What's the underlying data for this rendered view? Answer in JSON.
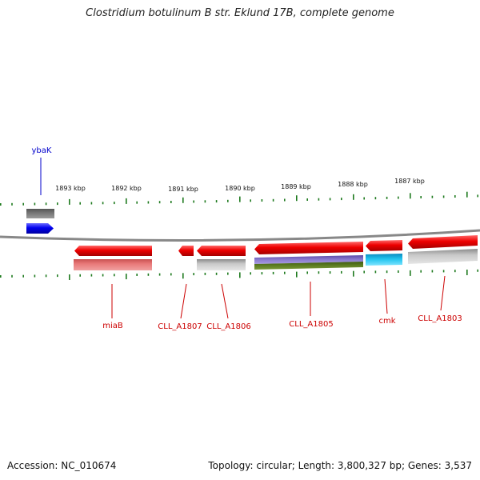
{
  "title": "Clostridium botulinum B str. Eklund 17B, complete genome",
  "footer": {
    "accession": "Accession: NC_010674",
    "topology": "Topology: circular; Length: 3,800,327 bp; Genes: 3,537"
  },
  "colors": {
    "tick": "#1e7a1e",
    "gene_label": "#cc0000",
    "ybak_label": "#0000cc",
    "backbone": "#777777",
    "gene_red": "#ee0000",
    "gene_blue": "#0000ee",
    "gene_gray": "#b0b0b0",
    "gene_darkgray": "#666666",
    "gene_pink": "#e87878",
    "gene_purple": "#7f6fc8",
    "gene_olive": "#5a7a1e",
    "gene_cyan": "#22c4ee"
  },
  "scale_labels": [
    "1893 kbp",
    "1892 kbp",
    "1891 kbp",
    "1890 kbp",
    "1889 kbp",
    "1888 kbp",
    "1887 kbp"
  ],
  "gene_labels": [
    {
      "id": "ybak",
      "text": "ybaK"
    },
    {
      "id": "miab",
      "text": "miaB"
    },
    {
      "id": "cll_a1807",
      "text": "CLL_A1807"
    },
    {
      "id": "cll_a1806",
      "text": "CLL_A1806"
    },
    {
      "id": "cll_a1805",
      "text": "CLL_A1805"
    },
    {
      "id": "cmk",
      "text": "cmk"
    },
    {
      "id": "cll_a1803",
      "text": "CLL_A1803"
    }
  ]
}
